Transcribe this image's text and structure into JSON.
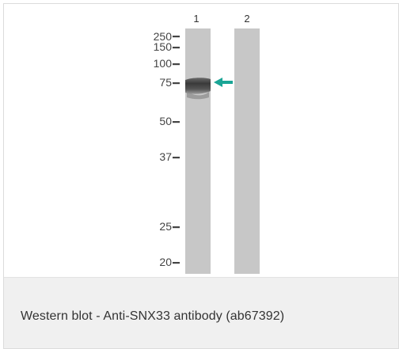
{
  "blot": {
    "lanes": [
      {
        "label": "1",
        "has_band": true
      },
      {
        "label": "2",
        "has_band": false
      }
    ],
    "markers": [
      {
        "label": "250",
        "kda": 250
      },
      {
        "label": "150",
        "kda": 150
      },
      {
        "label": "100",
        "kda": 100
      },
      {
        "label": "75",
        "kda": 75
      },
      {
        "label": "50",
        "kda": 50
      },
      {
        "label": "37",
        "kda": 37
      },
      {
        "label": "25",
        "kda": 25
      },
      {
        "label": "20",
        "kda": 20
      }
    ],
    "band_marker_kda": 75,
    "arrow_color": "#1aa596",
    "lane_color": "#c7c7c7",
    "band_color": "#3a3a3a"
  },
  "caption": {
    "text": "Western blot - Anti-SNX33 antibody (ab67392)"
  }
}
